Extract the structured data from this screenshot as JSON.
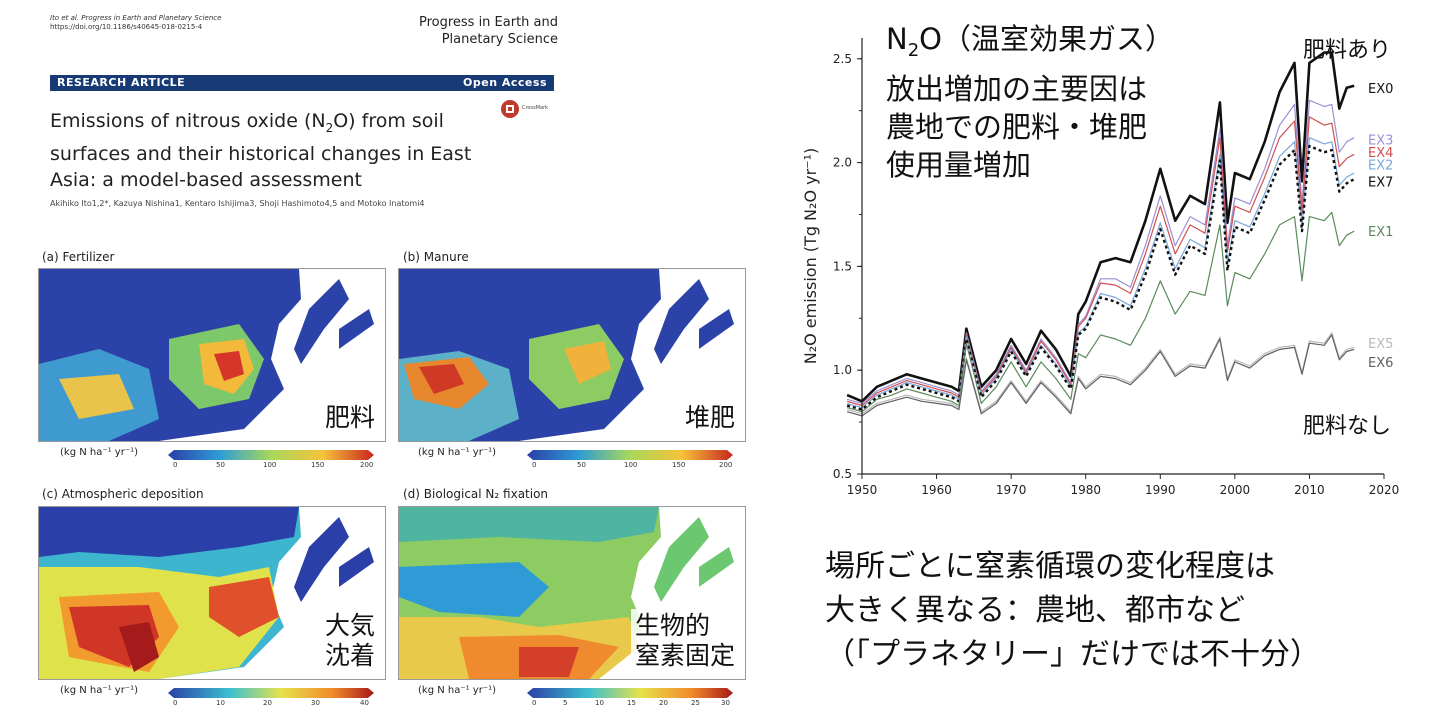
{
  "paper": {
    "citation_line1": "Ito et al. Progress in Earth and Planetary Science",
    "citation_line2": "https://doi.org/10.1186/s40645-018-0215-4",
    "journal_line1": "Progress in Earth and",
    "journal_line2": "Planetary Science",
    "banner_left": "RESEARCH ARTICLE",
    "banner_right": "Open Access",
    "crossmark": "CrossMark",
    "title_a": "Emissions of nitrous oxide (N",
    "title_sub": "2",
    "title_b": "O) from soil",
    "title_line2": "surfaces and their historical changes in East",
    "title_line3": "Asia: a model-based assessment",
    "authors": "Akihiko Ito1,2*, Kazuya Nishina1, Kentaro Ishijima3, Shoji Hashimoto4,5 and Motoko Inatomi4"
  },
  "maps": [
    {
      "title": "(a) Fertilizer",
      "label": "肥料",
      "unit": "(kg N ha⁻¹ yr⁻¹)",
      "ticks": [
        "0",
        "50",
        "100",
        "150",
        "200"
      ]
    },
    {
      "title": "(b) Manure",
      "label": "堆肥",
      "unit": "(kg N ha⁻¹ yr⁻¹)",
      "ticks": [
        "0",
        "50",
        "100",
        "150",
        "200"
      ]
    },
    {
      "title": "(c) Atmospheric deposition",
      "label1": "大気",
      "label2": "沈着",
      "unit": "(kg N ha⁻¹ yr⁻¹)",
      "ticks": [
        "0",
        "10",
        "20",
        "30",
        "40"
      ]
    },
    {
      "title": "(d) Biological N₂ fixation",
      "label1": "生物的",
      "label2": "窒素固定",
      "unit": "(kg N ha⁻¹ yr⁻¹)",
      "ticks": [
        "0",
        "5",
        "10",
        "15",
        "20",
        "25",
        "30"
      ]
    }
  ],
  "headline": {
    "line1_a": "N",
    "line1_sub": "2",
    "line1_b": "O（温室効果ガス）",
    "line2": "放出増加の主要因は",
    "line3": "農地での肥料・堆肥",
    "line4": "使用量増加"
  },
  "chart_labels": {
    "with_fertilizer": "肥料あり",
    "without_fertilizer": "肥料なし"
  },
  "bottom_text": {
    "line1": "場所ごとに窒素循環の変化程度は",
    "line2": "大きく異なる：農地、都市など",
    "line3": "（「プラネタリー」だけでは不十分）"
  },
  "colors": {
    "banner": "#173a74"
  },
  "chart_data": {
    "type": "line",
    "ylabel": "N₂O emission (Tg N₂O yr⁻¹)",
    "xlabel": "",
    "xlim": [
      1950,
      2020
    ],
    "ylim": [
      0.5,
      2.6
    ],
    "x_ticks": [
      1950,
      1960,
      1970,
      1980,
      1990,
      2000,
      2010,
      2020
    ],
    "y_ticks": [
      "0.5",
      "1.0",
      "1.5",
      "2.0",
      "2.5"
    ],
    "x": [
      1948,
      1950,
      1952,
      1954,
      1956,
      1958,
      1960,
      1962,
      1963,
      1964,
      1966,
      1968,
      1970,
      1972,
      1974,
      1976,
      1978,
      1979,
      1980,
      1982,
      1984,
      1986,
      1988,
      1990,
      1992,
      1994,
      1996,
      1998,
      1999,
      2000,
      2002,
      2004,
      2006,
      2008,
      2009,
      2010,
      2012,
      2013,
      2014,
      2015,
      2016
    ],
    "series": [
      {
        "name": "EX0",
        "color": "#111111",
        "dash": false,
        "width": 2.6,
        "values": [
          0.88,
          0.85,
          0.92,
          0.95,
          0.98,
          0.96,
          0.94,
          0.92,
          0.9,
          1.2,
          0.92,
          1.0,
          1.15,
          1.03,
          1.19,
          1.1,
          0.97,
          1.27,
          1.33,
          1.52,
          1.54,
          1.52,
          1.72,
          1.97,
          1.72,
          1.84,
          1.8,
          2.29,
          1.71,
          1.95,
          1.92,
          2.1,
          2.34,
          2.48,
          1.91,
          2.48,
          2.53,
          2.53,
          2.26,
          2.36,
          2.37
        ]
      },
      {
        "name": "EX3",
        "color": "#9b8fd6",
        "dash": false,
        "width": 1.2,
        "values": [
          0.86,
          0.84,
          0.9,
          0.93,
          0.96,
          0.94,
          0.92,
          0.9,
          0.88,
          1.18,
          0.9,
          0.98,
          1.12,
          1.0,
          1.15,
          1.06,
          0.94,
          1.22,
          1.26,
          1.44,
          1.44,
          1.4,
          1.6,
          1.84,
          1.6,
          1.74,
          1.7,
          2.16,
          1.6,
          1.83,
          1.8,
          1.97,
          2.18,
          2.28,
          1.8,
          2.3,
          2.27,
          2.28,
          2.05,
          2.1,
          2.12
        ]
      },
      {
        "name": "EX4",
        "color": "#d05050",
        "dash": false,
        "width": 1.2,
        "values": [
          0.85,
          0.83,
          0.89,
          0.92,
          0.95,
          0.93,
          0.91,
          0.89,
          0.87,
          1.17,
          0.89,
          0.97,
          1.11,
          0.99,
          1.14,
          1.05,
          0.93,
          1.21,
          1.25,
          1.42,
          1.41,
          1.37,
          1.56,
          1.79,
          1.56,
          1.7,
          1.66,
          2.12,
          1.57,
          1.79,
          1.76,
          1.93,
          2.12,
          2.2,
          1.76,
          2.22,
          2.18,
          2.19,
          1.98,
          2.02,
          2.04
        ]
      },
      {
        "name": "EX2",
        "color": "#7aa6d8",
        "dash": false,
        "width": 1.2,
        "values": [
          0.84,
          0.82,
          0.88,
          0.91,
          0.94,
          0.92,
          0.9,
          0.88,
          0.86,
          1.16,
          0.88,
          0.96,
          1.1,
          0.98,
          1.12,
          1.03,
          0.92,
          1.18,
          1.21,
          1.37,
          1.35,
          1.31,
          1.49,
          1.71,
          1.49,
          1.63,
          1.59,
          2.04,
          1.51,
          1.72,
          1.69,
          1.85,
          2.03,
          2.1,
          1.7,
          2.12,
          2.09,
          2.1,
          1.89,
          1.93,
          1.95
        ]
      },
      {
        "name": "EX7",
        "color": "#111111",
        "dash": true,
        "width": 2.4,
        "values": [
          0.83,
          0.81,
          0.87,
          0.9,
          0.93,
          0.91,
          0.89,
          0.87,
          0.85,
          1.15,
          0.87,
          0.95,
          1.09,
          0.97,
          1.11,
          1.02,
          0.91,
          1.17,
          1.2,
          1.35,
          1.33,
          1.29,
          1.46,
          1.68,
          1.46,
          1.6,
          1.56,
          2.01,
          1.48,
          1.69,
          1.66,
          1.82,
          1.99,
          2.06,
          1.67,
          2.08,
          2.05,
          2.06,
          1.86,
          1.9,
          1.92
        ]
      },
      {
        "name": "EX1",
        "color": "#5a8a5a",
        "dash": false,
        "width": 1.2,
        "values": [
          0.82,
          0.8,
          0.86,
          0.88,
          0.91,
          0.89,
          0.87,
          0.85,
          0.83,
          1.13,
          0.84,
          0.92,
          1.04,
          0.92,
          1.04,
          0.96,
          0.86,
          1.08,
          1.06,
          1.17,
          1.15,
          1.12,
          1.25,
          1.43,
          1.27,
          1.38,
          1.36,
          1.7,
          1.31,
          1.47,
          1.44,
          1.56,
          1.7,
          1.74,
          1.43,
          1.74,
          1.72,
          1.76,
          1.6,
          1.65,
          1.67
        ]
      },
      {
        "name": "EX5",
        "color": "#b8b8b8",
        "dash": false,
        "width": 1.2,
        "values": [
          0.81,
          0.79,
          0.84,
          0.86,
          0.88,
          0.86,
          0.85,
          0.84,
          0.82,
          1.06,
          0.8,
          0.85,
          0.95,
          0.85,
          0.95,
          0.88,
          0.8,
          0.97,
          0.92,
          0.98,
          0.97,
          0.94,
          1.01,
          1.1,
          0.98,
          1.03,
          1.02,
          1.16,
          0.96,
          1.05,
          1.02,
          1.08,
          1.11,
          1.12,
          0.99,
          1.14,
          1.13,
          1.18,
          1.06,
          1.1,
          1.11
        ]
      },
      {
        "name": "EX6",
        "color": "#606060",
        "dash": false,
        "width": 1.2,
        "values": [
          0.8,
          0.78,
          0.83,
          0.85,
          0.87,
          0.85,
          0.84,
          0.83,
          0.81,
          1.05,
          0.79,
          0.84,
          0.94,
          0.84,
          0.94,
          0.87,
          0.79,
          0.96,
          0.91,
          0.97,
          0.96,
          0.93,
          1.0,
          1.09,
          0.97,
          1.02,
          1.01,
          1.15,
          0.95,
          1.04,
          1.01,
          1.07,
          1.1,
          1.11,
          0.98,
          1.13,
          1.12,
          1.17,
          1.05,
          1.09,
          1.1
        ]
      }
    ]
  }
}
